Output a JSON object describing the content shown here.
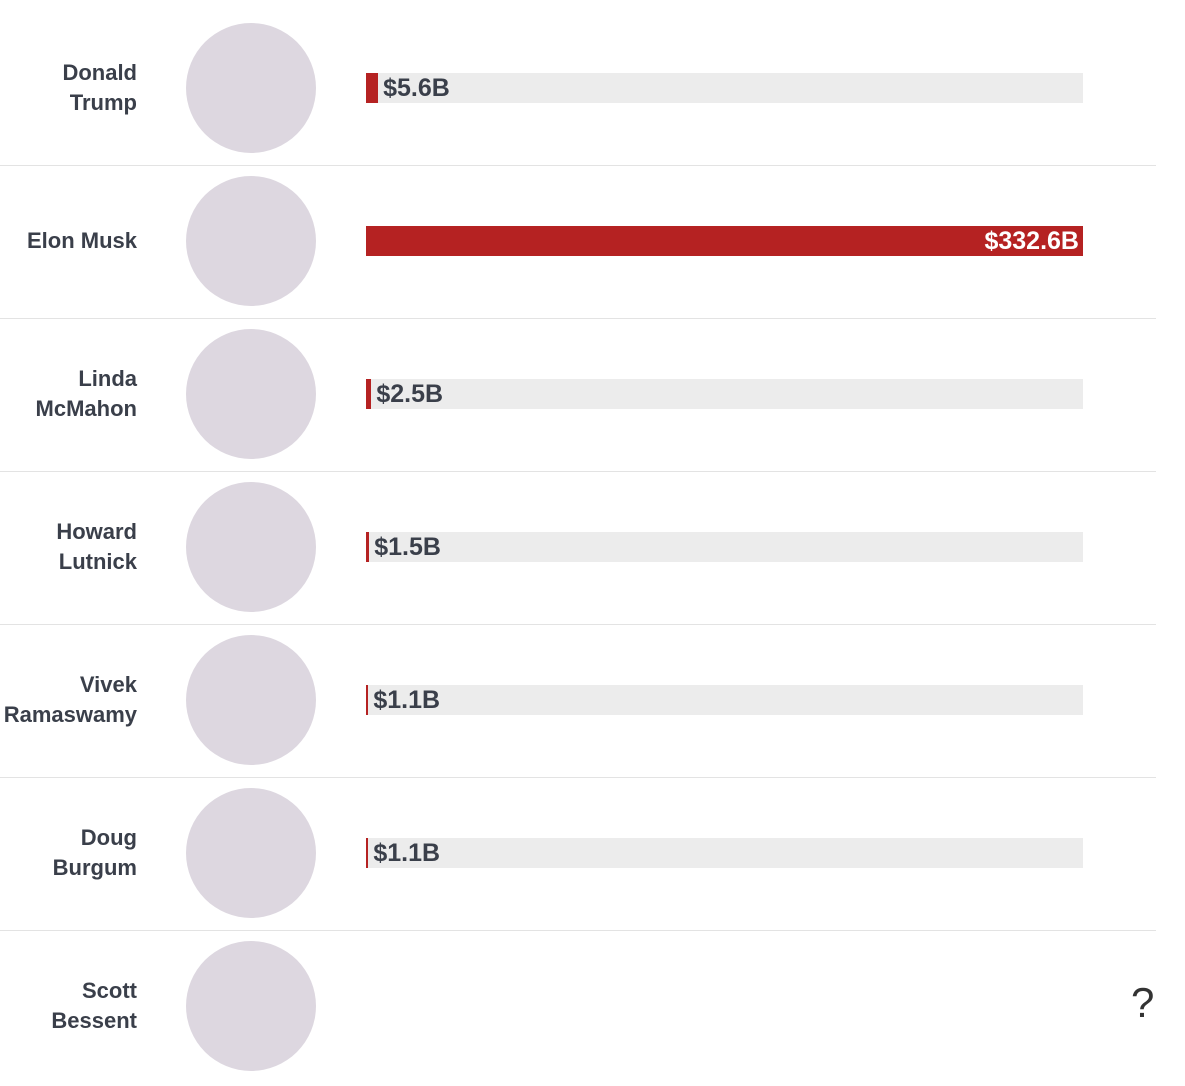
{
  "chart_data": {
    "type": "bar",
    "orientation": "horizontal",
    "categories": [
      "Donald Trump",
      "Elon Musk",
      "Linda McMahon",
      "Howard Lutnick",
      "Vivek Ramaswamy",
      "Doug Burgum",
      "Scott Bessent"
    ],
    "values": [
      5.6,
      332.6,
      2.5,
      1.5,
      1.1,
      1.1,
      null
    ],
    "value_labels": [
      "$5.6B",
      "$332.6B",
      "$2.5B",
      "$1.5B",
      "$1.1B",
      "$1.1B",
      "?"
    ],
    "color": "#b52222",
    "xlim": [
      0,
      332.6
    ]
  }
}
